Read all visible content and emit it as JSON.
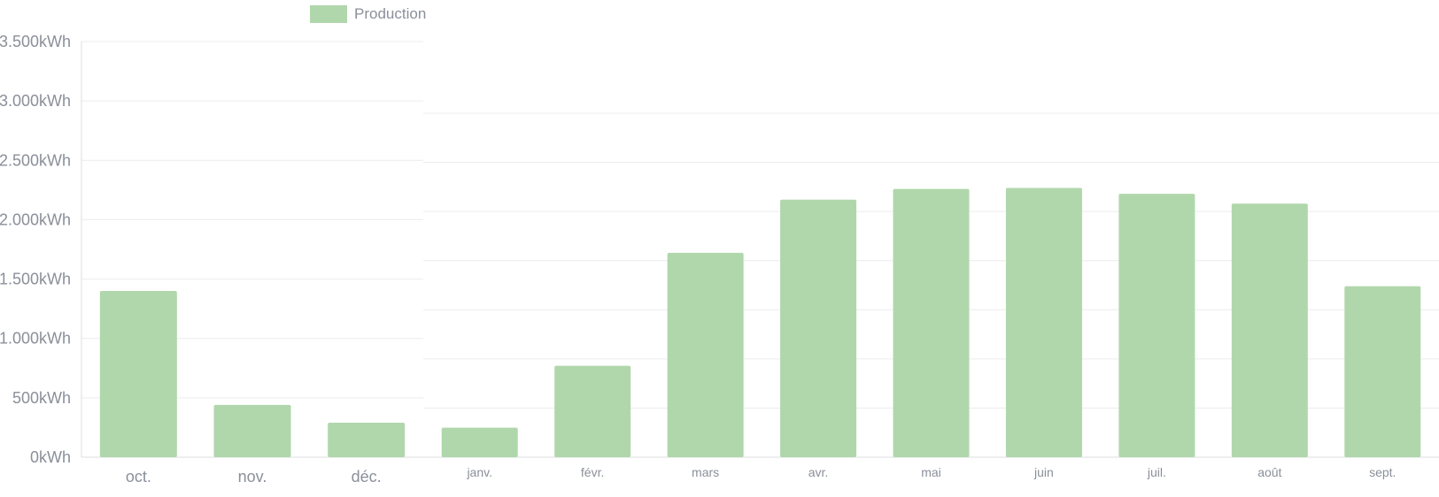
{
  "chart_data": [
    {
      "type": "bar",
      "legend": [
        {
          "name": "Production",
          "color": "#b0d7ab"
        }
      ],
      "legend_position": "top",
      "y_tick_labels": [
        "0kWh",
        "500kWh",
        "1.000kWh",
        "1.500kWh",
        "2.000kWh",
        "2.500kWh",
        "3.000kWh",
        "3.500kWh"
      ],
      "ylim": [
        0,
        3500
      ],
      "grid": true,
      "series": [
        {
          "name": "Production",
          "color": "#b0d7ab",
          "categories": [
            "oct.",
            "nov.",
            "déc."
          ],
          "values": [
            1400,
            440,
            290
          ]
        }
      ]
    },
    {
      "type": "bar",
      "ylim": [
        0,
        3500
      ],
      "grid": true,
      "series": [
        {
          "name": "Production",
          "color": "#b0d7ab",
          "categories": [
            "janv.",
            "févr.",
            "mars",
            "avr.",
            "mai",
            "juin",
            "juil.",
            "août",
            "sept."
          ],
          "values": [
            300,
            930,
            2080,
            2620,
            2730,
            2740,
            2680,
            2580,
            1740
          ]
        }
      ]
    }
  ]
}
